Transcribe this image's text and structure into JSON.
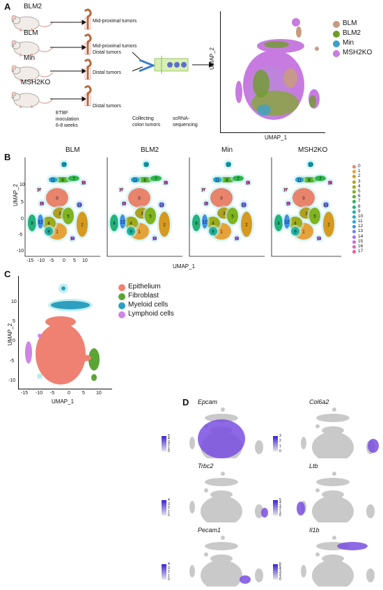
{
  "panels": {
    "a": "A",
    "b": "B",
    "c": "C",
    "d": "D"
  },
  "panel_a": {
    "models": [
      "BLM2",
      "BLM",
      "Min",
      "MSH2KO"
    ],
    "tumor_labels": [
      "Mid-proximal tumors",
      "Mid-proximal tumors",
      "Distal tumors",
      "Distal tumors",
      "Distal tumors"
    ],
    "step1": [
      "ETBF",
      "inoculation",
      "6-8 weeks"
    ],
    "step2": [
      "Collecting",
      "colon tumors"
    ],
    "step3": [
      "scRNA-",
      "sequencing"
    ],
    "umap_x": "UMAP_1",
    "umap_y": "UMAP_2",
    "legend": [
      {
        "label": "BLM",
        "color": "#c79b82"
      },
      {
        "label": "BLM2",
        "color": "#6e9e2a"
      },
      {
        "label": "Min",
        "color": "#3ea0c8"
      },
      {
        "label": "MSH2KO",
        "color": "#c77be0"
      }
    ]
  },
  "panel_b": {
    "titles": [
      "BLM",
      "BLM2",
      "Min",
      "MSH2KO"
    ],
    "xlabel": "UMAP_1",
    "ylabel": "UMAP_2",
    "xticks": [
      "-15",
      "-10",
      "-5",
      "0",
      "5",
      "10"
    ],
    "yticks": [
      "10",
      "5",
      "0",
      "-5",
      "-10"
    ],
    "clusters": [
      "0",
      "1",
      "2",
      "3",
      "4",
      "5",
      "6",
      "7",
      "8",
      "9",
      "10",
      "11",
      "12",
      "13",
      "14",
      "15",
      "16",
      "17"
    ],
    "cluster_colors": [
      "#e8836c",
      "#e6a23a",
      "#d59a1f",
      "#b0a020",
      "#9caa1d",
      "#7fb31f",
      "#56b52a",
      "#2fb54c",
      "#22b27a",
      "#1fb29f",
      "#22b0c2",
      "#2aa5dc",
      "#3f8ee8",
      "#7b7cf0",
      "#a86ee8",
      "#cf66da",
      "#e25fbd",
      "#ea5f98"
    ],
    "map_labels": [
      "0",
      "1",
      "2",
      "3",
      "4",
      "5",
      "6",
      "7",
      "8",
      "9",
      "10",
      "11",
      "12",
      "13",
      "14",
      "15",
      "16",
      "17"
    ]
  },
  "panel_c": {
    "xlabel": "UMAP_1",
    "ylabel": "UMAP_2",
    "xticks": [
      "-15",
      "-10",
      "-5",
      "0",
      "5",
      "10"
    ],
    "yticks": [
      "10",
      "5",
      "0",
      "-5",
      "-10"
    ],
    "legend": [
      {
        "label": "Epithelium",
        "color": "#ef8172"
      },
      {
        "label": "Fibroblast",
        "color": "#5aa534"
      },
      {
        "label": "Myeloid cells",
        "color": "#2e9fbf"
      },
      {
        "label": "Lymphoid cells",
        "color": "#cf85e6"
      }
    ]
  },
  "panel_d": {
    "genes": [
      "Epcam",
      "Col6a2",
      "Trbc2",
      "Ltb",
      "Pecam1",
      "Il1b"
    ],
    "scales": [
      [
        "5",
        "4",
        "3",
        "2",
        "1",
        "0"
      ],
      [
        "3",
        "2",
        "1",
        "0"
      ],
      [
        "4",
        "3",
        "2",
        "1",
        "0"
      ],
      [
        "5",
        "4",
        "3",
        "2",
        "1",
        "0"
      ],
      [
        "4",
        "3",
        "2",
        "1",
        "0"
      ],
      [
        "6",
        "5",
        "4",
        "3",
        "2",
        "1",
        "0"
      ]
    ]
  }
}
